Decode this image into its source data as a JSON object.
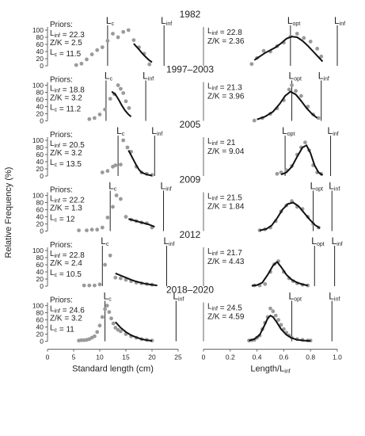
{
  "figure": {
    "y_label": "Relative Frequency (%)",
    "left_x_label": "Standard length (cm)",
    "right_x_label": "Length/L",
    "right_x_label_sub": "inf",
    "left_xticks": [
      "0",
      "5",
      "10",
      "15",
      "20",
      "25"
    ],
    "right_xticks": [
      "0",
      "0.2",
      "0.4",
      "0.6",
      "0.8",
      "1.0"
    ],
    "yticks": [
      "0",
      "20",
      "40",
      "60",
      "80",
      "100"
    ]
  },
  "chart_data": [
    {
      "type": "scatter",
      "title": "1982",
      "left": {
        "priors_label": "Priors:",
        "linf": "22.3",
        "zk": "2.5",
        "lc": "11.5",
        "lc_line": 11.5,
        "linf_line": 22.3,
        "points": [
          [
            5.5,
            2
          ],
          [
            6.5,
            6
          ],
          [
            7.5,
            18
          ],
          [
            8.5,
            32
          ],
          [
            9.5,
            44
          ],
          [
            10.5,
            52
          ],
          [
            11.5,
            70
          ],
          [
            12.5,
            90
          ],
          [
            13.5,
            80
          ],
          [
            14.5,
            95
          ],
          [
            15.5,
            100
          ],
          [
            16.5,
            72
          ],
          [
            17.5,
            52
          ],
          [
            18.5,
            34
          ],
          [
            19.5,
            4
          ]
        ],
        "curve": [
          [
            16.5,
            62
          ],
          [
            17,
            54
          ],
          [
            17.5,
            46
          ],
          [
            18,
            37
          ],
          [
            18.5,
            29
          ],
          [
            19,
            22
          ],
          [
            19.5,
            15
          ],
          [
            20,
            10
          ]
        ]
      },
      "right": {
        "linf": "22.8",
        "zk": "2.36",
        "lopt_line": 0.65,
        "linf_line": 1.0,
        "points": [
          [
            0.36,
            5
          ],
          [
            0.4,
            22
          ],
          [
            0.45,
            42
          ],
          [
            0.5,
            40
          ],
          [
            0.55,
            55
          ],
          [
            0.6,
            65
          ],
          [
            0.65,
            82
          ],
          [
            0.7,
            90
          ],
          [
            0.75,
            78
          ],
          [
            0.8,
            68
          ],
          [
            0.85,
            48
          ],
          [
            0.88,
            26
          ]
        ],
        "curve": [
          [
            0.38,
            16
          ],
          [
            0.42,
            26
          ],
          [
            0.46,
            36
          ],
          [
            0.5,
            44
          ],
          [
            0.54,
            52
          ],
          [
            0.58,
            63
          ],
          [
            0.62,
            76
          ],
          [
            0.66,
            82
          ],
          [
            0.7,
            80
          ],
          [
            0.74,
            70
          ],
          [
            0.78,
            56
          ],
          [
            0.82,
            40
          ],
          [
            0.86,
            24
          ],
          [
            0.89,
            12
          ]
        ]
      }
    },
    {
      "type": "scatter",
      "title": "1997–2003",
      "left": {
        "priors_label": "Priors:",
        "linf": "18.8",
        "zk": "3.2",
        "lc": "11.2",
        "lc_line": 11.2,
        "linf_line": 18.8,
        "points": [
          [
            8,
            5
          ],
          [
            9,
            8
          ],
          [
            10,
            18
          ],
          [
            11,
            32
          ],
          [
            12,
            62
          ],
          [
            12.8,
            75
          ],
          [
            13.5,
            100
          ],
          [
            14,
            90
          ],
          [
            14.5,
            78
          ],
          [
            15,
            55
          ],
          [
            15.6,
            36
          ]
        ],
        "curve": [
          [
            12.3,
            82
          ],
          [
            13,
            74
          ],
          [
            13.6,
            60
          ],
          [
            14.2,
            44
          ],
          [
            14.8,
            30
          ],
          [
            15.5,
            18
          ],
          [
            16,
            12
          ]
        ]
      },
      "right": {
        "linf": "21.3",
        "zk": "3.96",
        "lopt_line": 0.66,
        "linf_line": 0.88,
        "points": [
          [
            0.38,
            1
          ],
          [
            0.44,
            8
          ],
          [
            0.5,
            20
          ],
          [
            0.55,
            35
          ],
          [
            0.6,
            58
          ],
          [
            0.64,
            88
          ],
          [
            0.66,
            100
          ],
          [
            0.69,
            84
          ],
          [
            0.73,
            70
          ],
          [
            0.78,
            40
          ],
          [
            0.82,
            18
          ],
          [
            0.86,
            8
          ]
        ],
        "curve": [
          [
            0.4,
            4
          ],
          [
            0.46,
            12
          ],
          [
            0.52,
            26
          ],
          [
            0.57,
            48
          ],
          [
            0.61,
            70
          ],
          [
            0.65,
            82
          ],
          [
            0.69,
            74
          ],
          [
            0.73,
            56
          ],
          [
            0.77,
            36
          ],
          [
            0.81,
            20
          ],
          [
            0.85,
            8
          ]
        ]
      }
    },
    {
      "type": "scatter",
      "title": "2005",
      "left": {
        "priors_label": "Priors:",
        "linf": "20.5",
        "zk": "3.2",
        "lc": "13.5",
        "lc_line": 13.5,
        "linf_line": 20.5,
        "points": [
          [
            10.5,
            10
          ],
          [
            11.5,
            14
          ],
          [
            12.5,
            26
          ],
          [
            13,
            30
          ],
          [
            14,
            32
          ],
          [
            14.5,
            100
          ],
          [
            15.3,
            80
          ],
          [
            16,
            68
          ],
          [
            17,
            26
          ],
          [
            18,
            10
          ],
          [
            19,
            6
          ],
          [
            20,
            3
          ]
        ],
        "curve": [
          [
            15.5,
            72
          ],
          [
            16,
            58
          ],
          [
            16.5,
            44
          ],
          [
            17,
            30
          ],
          [
            17.5,
            18
          ],
          [
            18,
            10
          ],
          [
            19,
            4
          ],
          [
            20,
            1
          ]
        ]
      },
      "right": {
        "linf": "21",
        "zk": "9.04",
        "lopt_line": 0.61,
        "linf_line": 0.95,
        "points": [
          [
            0.55,
            6
          ],
          [
            0.58,
            10
          ],
          [
            0.62,
            16
          ],
          [
            0.66,
            28
          ],
          [
            0.7,
            60
          ],
          [
            0.73,
            80
          ],
          [
            0.76,
            94
          ],
          [
            0.79,
            72
          ],
          [
            0.82,
            30
          ],
          [
            0.85,
            10
          ],
          [
            0.88,
            6
          ]
        ],
        "curve": [
          [
            0.58,
            4
          ],
          [
            0.62,
            10
          ],
          [
            0.66,
            26
          ],
          [
            0.7,
            54
          ],
          [
            0.74,
            80
          ],
          [
            0.77,
            86
          ],
          [
            0.8,
            64
          ],
          [
            0.83,
            30
          ],
          [
            0.86,
            10
          ],
          [
            0.89,
            2
          ]
        ]
      }
    },
    {
      "type": "scatter",
      "title": "2009",
      "left": {
        "priors_label": "Priors:",
        "linf": "22.2",
        "zk": "1.3",
        "lc": "12",
        "lc_line": 12,
        "linf_line": 22.2,
        "points": [
          [
            6,
            2
          ],
          [
            7.5,
            2
          ],
          [
            8.5,
            4
          ],
          [
            9.5,
            4
          ],
          [
            10.5,
            10
          ],
          [
            11.5,
            38
          ],
          [
            12.5,
            68
          ],
          [
            13.2,
            100
          ],
          [
            14,
            90
          ],
          [
            15,
            40
          ],
          [
            16,
            32
          ],
          [
            17,
            28
          ],
          [
            18,
            24
          ],
          [
            19,
            22
          ],
          [
            20,
            10
          ]
        ],
        "curve": [
          [
            15.5,
            34
          ],
          [
            16.5,
            30
          ],
          [
            17.5,
            26
          ],
          [
            18.5,
            22
          ],
          [
            19.5,
            18
          ],
          [
            20.5,
            12
          ]
        ]
      },
      "right": {
        "linf": "21.5",
        "zk": "1.84",
        "lopt_line": 0.82,
        "linf_line": 0.96,
        "points": [
          [
            0.42,
            2
          ],
          [
            0.46,
            5
          ],
          [
            0.5,
            10
          ],
          [
            0.54,
            28
          ],
          [
            0.58,
            55
          ],
          [
            0.62,
            72
          ],
          [
            0.66,
            84
          ],
          [
            0.7,
            68
          ],
          [
            0.74,
            62
          ],
          [
            0.78,
            40
          ],
          [
            0.82,
            20
          ],
          [
            0.86,
            10
          ]
        ],
        "curve": [
          [
            0.42,
            2
          ],
          [
            0.47,
            6
          ],
          [
            0.51,
            16
          ],
          [
            0.55,
            36
          ],
          [
            0.59,
            60
          ],
          [
            0.63,
            76
          ],
          [
            0.67,
            80
          ],
          [
            0.71,
            70
          ],
          [
            0.75,
            52
          ],
          [
            0.79,
            34
          ],
          [
            0.83,
            18
          ],
          [
            0.87,
            8
          ]
        ]
      }
    },
    {
      "type": "scatter",
      "title": "2012",
      "left": {
        "priors_label": "Priors:",
        "linf": "22.8",
        "zk": "2.4",
        "lc": "10.5",
        "lc_line": 10.5,
        "linf_line": 22.8,
        "points": [
          [
            7,
            2
          ],
          [
            8,
            2
          ],
          [
            9,
            2
          ],
          [
            10,
            5
          ],
          [
            11,
            60
          ],
          [
            12,
            86
          ],
          [
            13,
            24
          ],
          [
            14,
            22
          ],
          [
            15,
            18
          ],
          [
            16,
            14
          ],
          [
            17,
            10
          ],
          [
            18,
            8
          ],
          [
            19,
            6
          ],
          [
            20,
            4
          ]
        ],
        "curve": [
          [
            13,
            36
          ],
          [
            14,
            30
          ],
          [
            15,
            24
          ],
          [
            16,
            18
          ],
          [
            17,
            13
          ],
          [
            18,
            9
          ],
          [
            19,
            6
          ],
          [
            20,
            4
          ],
          [
            21,
            2
          ]
        ]
      },
      "right": {
        "linf": "21.7",
        "zk": "4.43",
        "lopt_line": 0.83,
        "linf_line": 0.98,
        "points": [
          [
            0.38,
            2
          ],
          [
            0.42,
            2
          ],
          [
            0.46,
            6
          ],
          [
            0.5,
            40
          ],
          [
            0.53,
            62
          ],
          [
            0.56,
            70
          ],
          [
            0.6,
            40
          ],
          [
            0.64,
            22
          ],
          [
            0.67,
            14
          ],
          [
            0.7,
            8
          ],
          [
            0.74,
            4
          ],
          [
            0.78,
            2
          ]
        ],
        "curve": [
          [
            0.36,
            1
          ],
          [
            0.4,
            3
          ],
          [
            0.44,
            10
          ],
          [
            0.48,
            32
          ],
          [
            0.52,
            58
          ],
          [
            0.55,
            68
          ],
          [
            0.58,
            54
          ],
          [
            0.62,
            32
          ],
          [
            0.66,
            18
          ],
          [
            0.7,
            10
          ],
          [
            0.74,
            5
          ],
          [
            0.78,
            2
          ]
        ]
      }
    },
    {
      "type": "scatter",
      "title": "2018–2020",
      "left": {
        "priors_label": "Priors:",
        "linf": "24.6",
        "zk": "3.2",
        "lc": "11",
        "lc_line": 11,
        "linf_line": 24.6,
        "points": [
          [
            6,
            2
          ],
          [
            6.5,
            3
          ],
          [
            7,
            3
          ],
          [
            7.5,
            4
          ],
          [
            8,
            6
          ],
          [
            8.5,
            10
          ],
          [
            9,
            14
          ],
          [
            9.5,
            26
          ],
          [
            10,
            44
          ],
          [
            10.5,
            68
          ],
          [
            11,
            90
          ],
          [
            11.4,
            100
          ],
          [
            11.8,
            82
          ],
          [
            12.2,
            64
          ],
          [
            12.6,
            50
          ],
          [
            13,
            38
          ],
          [
            13.5,
            32
          ],
          [
            14,
            28
          ],
          [
            15,
            20
          ],
          [
            16,
            14
          ],
          [
            17,
            10
          ],
          [
            18,
            6
          ],
          [
            19,
            4
          ],
          [
            20,
            2
          ]
        ],
        "curve": [
          [
            13,
            54
          ],
          [
            14,
            38
          ],
          [
            15,
            26
          ],
          [
            16,
            17
          ],
          [
            17,
            11
          ],
          [
            18,
            6
          ],
          [
            19,
            3
          ],
          [
            20,
            1
          ]
        ]
      },
      "right": {
        "linf": "24.5",
        "zk": "4.59",
        "lopt_line": 0.66,
        "linf_line": 0.96,
        "points": [
          [
            0.34,
            2
          ],
          [
            0.36,
            3
          ],
          [
            0.38,
            4
          ],
          [
            0.4,
            10
          ],
          [
            0.42,
            16
          ],
          [
            0.44,
            34
          ],
          [
            0.46,
            52
          ],
          [
            0.48,
            68
          ],
          [
            0.5,
            92
          ],
          [
            0.52,
            84
          ],
          [
            0.54,
            72
          ],
          [
            0.56,
            60
          ],
          [
            0.58,
            46
          ],
          [
            0.6,
            34
          ],
          [
            0.62,
            24
          ],
          [
            0.64,
            16
          ],
          [
            0.66,
            10
          ],
          [
            0.7,
            6
          ],
          [
            0.74,
            4
          ],
          [
            0.78,
            2
          ],
          [
            0.8,
            2
          ]
        ],
        "curve": [
          [
            0.34,
            2
          ],
          [
            0.38,
            6
          ],
          [
            0.42,
            18
          ],
          [
            0.45,
            40
          ],
          [
            0.48,
            64
          ],
          [
            0.5,
            72
          ],
          [
            0.52,
            68
          ],
          [
            0.55,
            52
          ],
          [
            0.58,
            34
          ],
          [
            0.62,
            18
          ],
          [
            0.66,
            9
          ],
          [
            0.7,
            4
          ],
          [
            0.75,
            2
          ],
          [
            0.8,
            1
          ]
        ]
      }
    }
  ]
}
